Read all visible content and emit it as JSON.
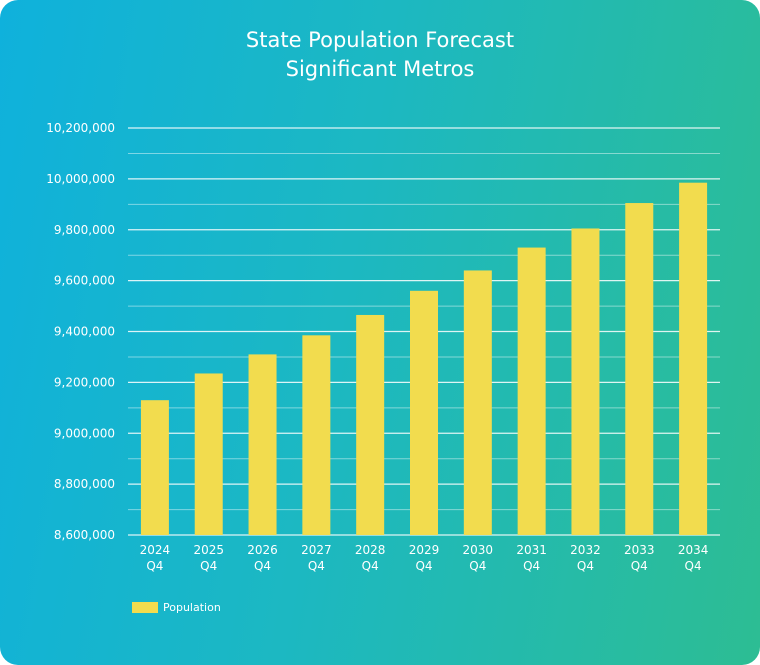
{
  "chart_data": {
    "type": "bar",
    "title": "State Population Forecast",
    "subtitle": "Significant Metros",
    "categories": [
      [
        "2024",
        "Q4"
      ],
      [
        "2025",
        "Q4"
      ],
      [
        "2026",
        "Q4"
      ],
      [
        "2027",
        "Q4"
      ],
      [
        "2028",
        "Q4"
      ],
      [
        "2029",
        "Q4"
      ],
      [
        "2030",
        "Q4"
      ],
      [
        "2031",
        "Q4"
      ],
      [
        "2032",
        "Q4"
      ],
      [
        "2033",
        "Q4"
      ],
      [
        "2034",
        "Q4"
      ]
    ],
    "series": [
      {
        "name": "Population",
        "values": [
          9130000,
          9235000,
          9310000,
          9385000,
          9465000,
          9560000,
          9640000,
          9730000,
          9805000,
          9905000,
          9985000
        ]
      }
    ],
    "ylim": [
      8600000,
      10200000
    ],
    "yticks": [
      8600000,
      8800000,
      9000000,
      9200000,
      9400000,
      9600000,
      9800000,
      10000000,
      10200000
    ],
    "ytick_labels": [
      "8,600,000",
      "8,800,000",
      "9,000,000",
      "9,200,000",
      "9,400,000",
      "9,600,000",
      "9,800,000",
      "10,000,000",
      "10,200,000"
    ],
    "grid": true,
    "legend_position": "bottom-left",
    "colors": {
      "bar": "#f2dc4e",
      "grid": "#ffffff",
      "text": "#ffffff"
    }
  }
}
